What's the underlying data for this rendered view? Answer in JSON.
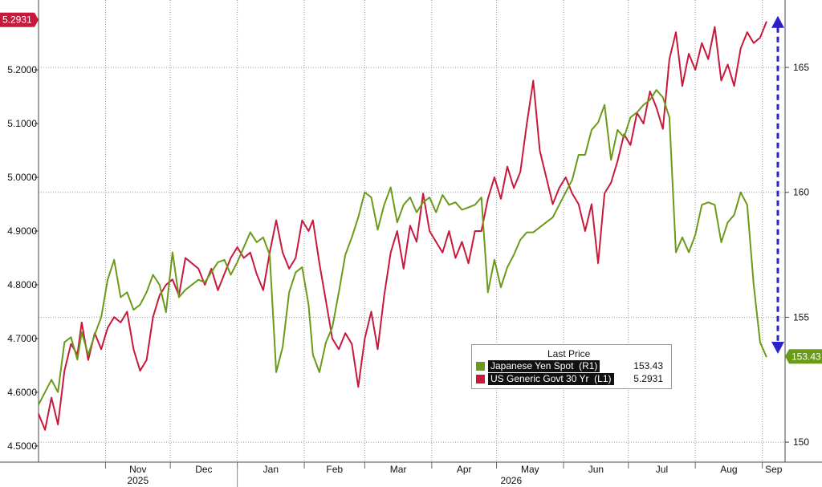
{
  "chart_data": {
    "type": "line",
    "x_labels": [
      "Nov",
      "Dec",
      "Jan",
      "Feb",
      "Mar",
      "Apr",
      "May",
      "Jun",
      "Jul",
      "Aug",
      "Sep"
    ],
    "year_labels": [
      "2025",
      "2026"
    ],
    "left_axis": {
      "ticks": [
        "4.5000",
        "4.6000",
        "4.7000",
        "4.8000",
        "4.9000",
        "5.0000",
        "5.1000",
        "5.2000"
      ],
      "range": [
        4.47,
        5.33
      ]
    },
    "right_axis": {
      "ticks": [
        "150",
        "155",
        "160",
        "165"
      ],
      "range": [
        149.2,
        167.7
      ]
    },
    "legend": {
      "header": "Last Price",
      "entries": [
        {
          "name": "Japanese Yen Spot  (R1)",
          "value": "153.43",
          "color": "#6b9a1a"
        },
        {
          "name": "US Generic Govt 30 Yr  (L1)",
          "value": "5.2931",
          "color": "#c8193c"
        }
      ]
    },
    "last_value_badges": {
      "left": "5.2931",
      "right": "153.43"
    },
    "series": [
      {
        "name": "US Generic Govt 30 Yr",
        "axis": "left",
        "color": "#c8193c",
        "points": [
          [
            "2025-10-01",
            4.56
          ],
          [
            "2025-10-04",
            4.53
          ],
          [
            "2025-10-07",
            4.59
          ],
          [
            "2025-10-10",
            4.54
          ],
          [
            "2025-10-13",
            4.64
          ],
          [
            "2025-10-16",
            4.69
          ],
          [
            "2025-10-19",
            4.67
          ],
          [
            "2025-10-21",
            4.73
          ],
          [
            "2025-10-24",
            4.66
          ],
          [
            "2025-10-27",
            4.71
          ],
          [
            "2025-10-30",
            4.68
          ],
          [
            "2025-11-02",
            4.72
          ],
          [
            "2025-11-05",
            4.74
          ],
          [
            "2025-11-08",
            4.73
          ],
          [
            "2025-11-11",
            4.75
          ],
          [
            "2025-11-14",
            4.68
          ],
          [
            "2025-11-17",
            4.64
          ],
          [
            "2025-11-20",
            4.66
          ],
          [
            "2025-11-23",
            4.74
          ],
          [
            "2025-11-26",
            4.78
          ],
          [
            "2025-11-29",
            4.8
          ],
          [
            "2025-12-02",
            4.81
          ],
          [
            "2025-12-05",
            4.78
          ],
          [
            "2025-12-08",
            4.85
          ],
          [
            "2025-12-11",
            4.84
          ],
          [
            "2025-12-14",
            4.83
          ],
          [
            "2025-12-17",
            4.8
          ],
          [
            "2025-12-20",
            4.83
          ],
          [
            "2025-12-23",
            4.79
          ],
          [
            "2025-12-26",
            4.82
          ],
          [
            "2025-12-29",
            4.85
          ],
          [
            "2026-01-01",
            4.87
          ],
          [
            "2026-01-04",
            4.85
          ],
          [
            "2026-01-07",
            4.86
          ],
          [
            "2026-01-10",
            4.82
          ],
          [
            "2026-01-13",
            4.79
          ],
          [
            "2026-01-16",
            4.86
          ],
          [
            "2026-01-19",
            4.92
          ],
          [
            "2026-01-22",
            4.86
          ],
          [
            "2026-01-25",
            4.83
          ],
          [
            "2026-01-28",
            4.85
          ],
          [
            "2026-01-31",
            4.92
          ],
          [
            "2026-02-03",
            4.9
          ],
          [
            "2026-02-05",
            4.92
          ],
          [
            "2026-02-08",
            4.84
          ],
          [
            "2026-02-11",
            4.77
          ],
          [
            "2026-02-14",
            4.7
          ],
          [
            "2026-02-17",
            4.68
          ],
          [
            "2026-02-20",
            4.71
          ],
          [
            "2026-02-23",
            4.69
          ],
          [
            "2026-02-26",
            4.61
          ],
          [
            "2026-03-01",
            4.7
          ],
          [
            "2026-03-04",
            4.75
          ],
          [
            "2026-03-07",
            4.68
          ],
          [
            "2026-03-10",
            4.78
          ],
          [
            "2026-03-13",
            4.86
          ],
          [
            "2026-03-16",
            4.9
          ],
          [
            "2026-03-19",
            4.83
          ],
          [
            "2026-03-22",
            4.91
          ],
          [
            "2026-03-25",
            4.88
          ],
          [
            "2026-03-28",
            4.97
          ],
          [
            "2026-03-31",
            4.9
          ],
          [
            "2026-04-03",
            4.88
          ],
          [
            "2026-04-06",
            4.86
          ],
          [
            "2026-04-09",
            4.9
          ],
          [
            "2026-04-12",
            4.85
          ],
          [
            "2026-04-15",
            4.88
          ],
          [
            "2026-04-18",
            4.84
          ],
          [
            "2026-04-21",
            4.9
          ],
          [
            "2026-04-24",
            4.9
          ],
          [
            "2026-04-27",
            4.96
          ],
          [
            "2026-04-30",
            5.0
          ],
          [
            "2026-05-03",
            4.96
          ],
          [
            "2026-05-06",
            5.02
          ],
          [
            "2026-05-09",
            4.98
          ],
          [
            "2026-05-12",
            5.01
          ],
          [
            "2026-05-15",
            5.1
          ],
          [
            "2026-05-18",
            5.18
          ],
          [
            "2026-05-21",
            5.05
          ],
          [
            "2026-05-24",
            5.0
          ],
          [
            "2026-05-27",
            4.95
          ],
          [
            "2026-05-30",
            4.98
          ],
          [
            "2026-06-02",
            5.0
          ],
          [
            "2026-06-05",
            4.97
          ],
          [
            "2026-06-08",
            4.95
          ],
          [
            "2026-06-11",
            4.9
          ],
          [
            "2026-06-14",
            4.95
          ],
          [
            "2026-06-17",
            4.84
          ],
          [
            "2026-06-20",
            4.97
          ],
          [
            "2026-06-23",
            4.99
          ],
          [
            "2026-06-26",
            5.03
          ],
          [
            "2026-06-29",
            5.08
          ],
          [
            "2026-07-02",
            5.06
          ],
          [
            "2026-07-05",
            5.12
          ],
          [
            "2026-07-08",
            5.1
          ],
          [
            "2026-07-11",
            5.16
          ],
          [
            "2026-07-14",
            5.13
          ],
          [
            "2026-07-17",
            5.09
          ],
          [
            "2026-07-20",
            5.22
          ],
          [
            "2026-07-23",
            5.27
          ],
          [
            "2026-07-26",
            5.17
          ],
          [
            "2026-07-29",
            5.23
          ],
          [
            "2026-08-01",
            5.2
          ],
          [
            "2026-08-04",
            5.25
          ],
          [
            "2026-08-07",
            5.22
          ],
          [
            "2026-08-10",
            5.28
          ],
          [
            "2026-08-13",
            5.18
          ],
          [
            "2026-08-16",
            5.21
          ],
          [
            "2026-08-19",
            5.17
          ],
          [
            "2026-08-22",
            5.24
          ],
          [
            "2026-08-25",
            5.27
          ],
          [
            "2026-08-28",
            5.25
          ],
          [
            "2026-08-31",
            5.26
          ],
          [
            "2026-09-03",
            5.29
          ]
        ]
      },
      {
        "name": "Japanese Yen Spot",
        "axis": "right",
        "color": "#6b9a1a",
        "points": [
          [
            "2025-10-01",
            151.5
          ],
          [
            "2025-10-04",
            152.0
          ],
          [
            "2025-10-07",
            152.5
          ],
          [
            "2025-10-10",
            152.0
          ],
          [
            "2025-10-13",
            154.0
          ],
          [
            "2025-10-16",
            154.2
          ],
          [
            "2025-10-19",
            153.3
          ],
          [
            "2025-10-21",
            154.4
          ],
          [
            "2025-10-24",
            153.5
          ],
          [
            "2025-10-27",
            154.3
          ],
          [
            "2025-10-30",
            155.0
          ],
          [
            "2025-11-02",
            156.5
          ],
          [
            "2025-11-05",
            157.3
          ],
          [
            "2025-11-08",
            155.8
          ],
          [
            "2025-11-11",
            156.0
          ],
          [
            "2025-11-14",
            155.3
          ],
          [
            "2025-11-17",
            155.5
          ],
          [
            "2025-11-20",
            156.0
          ],
          [
            "2025-11-23",
            156.7
          ],
          [
            "2025-11-26",
            156.3
          ],
          [
            "2025-11-29",
            155.2
          ],
          [
            "2025-12-02",
            157.6
          ],
          [
            "2025-12-05",
            155.8
          ],
          [
            "2025-12-08",
            156.1
          ],
          [
            "2025-12-11",
            156.3
          ],
          [
            "2025-12-14",
            156.5
          ],
          [
            "2025-12-17",
            156.4
          ],
          [
            "2025-12-20",
            156.8
          ],
          [
            "2025-12-23",
            157.2
          ],
          [
            "2025-12-26",
            157.3
          ],
          [
            "2025-12-29",
            156.7
          ],
          [
            "2026-01-01",
            157.2
          ],
          [
            "2026-01-04",
            157.8
          ],
          [
            "2026-01-07",
            158.4
          ],
          [
            "2026-01-10",
            158.0
          ],
          [
            "2026-01-13",
            158.2
          ],
          [
            "2026-01-16",
            157.5
          ],
          [
            "2026-01-19",
            152.8
          ],
          [
            "2026-01-22",
            153.8
          ],
          [
            "2026-01-25",
            156.0
          ],
          [
            "2026-01-28",
            156.8
          ],
          [
            "2026-01-31",
            157.0
          ],
          [
            "2026-02-03",
            155.5
          ],
          [
            "2026-02-05",
            153.5
          ],
          [
            "2026-02-08",
            152.8
          ],
          [
            "2026-02-11",
            154.0
          ],
          [
            "2026-02-14",
            154.6
          ],
          [
            "2026-02-17",
            156.0
          ],
          [
            "2026-02-20",
            157.5
          ],
          [
            "2026-02-23",
            158.2
          ],
          [
            "2026-02-26",
            159.0
          ],
          [
            "2026-03-01",
            160.0
          ],
          [
            "2026-03-04",
            159.8
          ],
          [
            "2026-03-07",
            158.5
          ],
          [
            "2026-03-10",
            159.5
          ],
          [
            "2026-03-13",
            160.2
          ],
          [
            "2026-03-16",
            158.8
          ],
          [
            "2026-03-19",
            159.5
          ],
          [
            "2026-03-22",
            159.8
          ],
          [
            "2026-03-25",
            159.2
          ],
          [
            "2026-03-28",
            159.6
          ],
          [
            "2026-03-31",
            159.8
          ],
          [
            "2026-04-03",
            159.2
          ],
          [
            "2026-04-06",
            159.9
          ],
          [
            "2026-04-09",
            159.5
          ],
          [
            "2026-04-12",
            159.6
          ],
          [
            "2026-04-15",
            159.3
          ],
          [
            "2026-04-18",
            159.4
          ],
          [
            "2026-04-21",
            159.5
          ],
          [
            "2026-04-24",
            159.8
          ],
          [
            "2026-04-27",
            156.0
          ],
          [
            "2026-04-30",
            157.3
          ],
          [
            "2026-05-03",
            156.2
          ],
          [
            "2026-05-06",
            157.0
          ],
          [
            "2026-05-09",
            157.5
          ],
          [
            "2026-05-12",
            158.1
          ],
          [
            "2026-05-15",
            158.4
          ],
          [
            "2026-05-18",
            158.4
          ],
          [
            "2026-05-21",
            158.6
          ],
          [
            "2026-05-24",
            158.8
          ],
          [
            "2026-05-27",
            159.0
          ],
          [
            "2026-05-30",
            159.5
          ],
          [
            "2026-06-02",
            160.0
          ],
          [
            "2026-06-05",
            160.5
          ],
          [
            "2026-06-08",
            161.5
          ],
          [
            "2026-06-11",
            161.5
          ],
          [
            "2026-06-14",
            162.5
          ],
          [
            "2026-06-17",
            162.8
          ],
          [
            "2026-06-20",
            163.5
          ],
          [
            "2026-06-23",
            161.3
          ],
          [
            "2026-06-26",
            162.5
          ],
          [
            "2026-06-29",
            162.2
          ],
          [
            "2026-07-02",
            163.0
          ],
          [
            "2026-07-05",
            163.2
          ],
          [
            "2026-07-08",
            163.5
          ],
          [
            "2026-07-11",
            163.7
          ],
          [
            "2026-07-14",
            164.1
          ],
          [
            "2026-07-17",
            163.8
          ],
          [
            "2026-07-20",
            163.0
          ],
          [
            "2026-07-23",
            157.6
          ],
          [
            "2026-07-26",
            158.2
          ],
          [
            "2026-07-29",
            157.6
          ],
          [
            "2026-08-01",
            158.3
          ],
          [
            "2026-08-04",
            159.5
          ],
          [
            "2026-08-07",
            159.6
          ],
          [
            "2026-08-10",
            159.5
          ],
          [
            "2026-08-13",
            158.0
          ],
          [
            "2026-08-16",
            158.8
          ],
          [
            "2026-08-19",
            159.1
          ],
          [
            "2026-08-22",
            160.0
          ],
          [
            "2026-08-25",
            159.5
          ],
          [
            "2026-08-28",
            156.3
          ],
          [
            "2026-08-31",
            154.0
          ],
          [
            "2026-09-03",
            153.4
          ]
        ]
      }
    ],
    "annotation": {
      "type": "double-arrow",
      "axis": "right",
      "from": 153.6,
      "to": 167.0,
      "color": "#2a22c8"
    }
  }
}
